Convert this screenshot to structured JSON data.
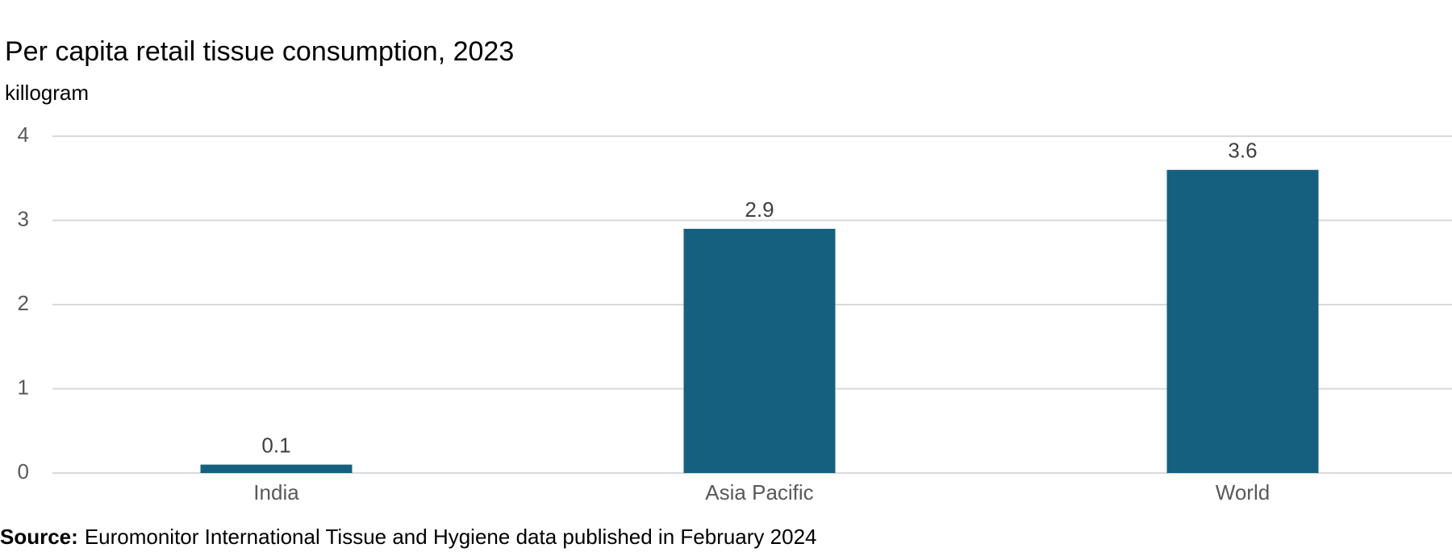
{
  "chart_data": {
    "type": "bar",
    "title": "Per capita retail tissue consumption, 2023",
    "subtitle": "killogram",
    "categories": [
      "India",
      "Asia Pacific",
      "World"
    ],
    "values": [
      0.1,
      2.9,
      3.6
    ],
    "color": "#16607f",
    "ylim": [
      0,
      4
    ],
    "yticks": [
      0,
      1,
      2,
      3,
      4
    ],
    "grid": true,
    "source_label": "Source:",
    "source_text": "Euromonitor International Tissue and Hygiene data published in February 2024"
  }
}
